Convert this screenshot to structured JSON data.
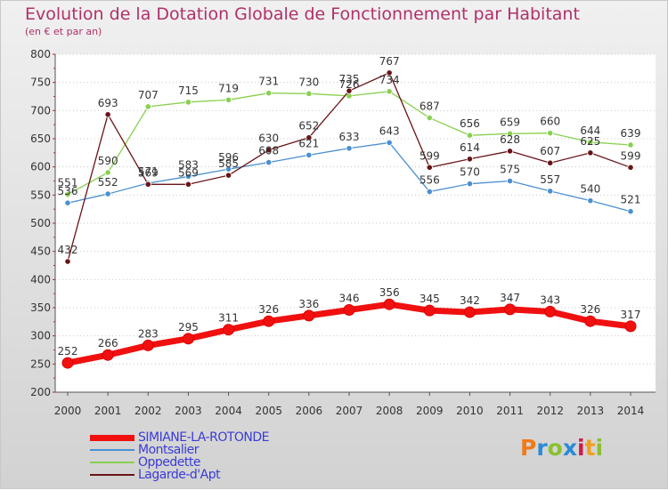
{
  "title": "Evolution de la Dotation Globale de Fonctionnement par Habitant",
  "subtitle": "(en € et par an)",
  "logo": {
    "text": "Proxiti",
    "colors": [
      "#f07a1a",
      "#2a8ad8",
      "#8ac030",
      "#2a8ad8",
      "#d01a4a",
      "#f0a020",
      "#8ac030"
    ]
  },
  "chart_data": {
    "type": "line",
    "x": [
      "2000",
      "2001",
      "2002",
      "2003",
      "2004",
      "2005",
      "2006",
      "2007",
      "2008",
      "2009",
      "2010",
      "2011",
      "2012",
      "2013",
      "2014"
    ],
    "ylim": [
      200,
      800
    ],
    "yticks": [
      200,
      250,
      300,
      350,
      400,
      450,
      500,
      550,
      600,
      650,
      700,
      750,
      800
    ],
    "grid": "horizontal dotted",
    "legend_position": "bottom-left",
    "series": [
      {
        "name": "SIMIANE-LA-ROTONDE",
        "color": "#f01010",
        "values": [
          252,
          266,
          283,
          295,
          311,
          326,
          336,
          346,
          356,
          345,
          342,
          347,
          343,
          326,
          317
        ]
      },
      {
        "name": "Montsalier",
        "color": "#4a90d0",
        "values": [
          536,
          552,
          571,
          583,
          596,
          608,
          621,
          633,
          643,
          556,
          570,
          575,
          557,
          540,
          521
        ]
      },
      {
        "name": "Oppedette",
        "color": "#88d050",
        "values": [
          551,
          590,
          707,
          715,
          719,
          731,
          730,
          726,
          734,
          687,
          656,
          659,
          660,
          644,
          639
        ]
      },
      {
        "name": "Lagarde-d'Apt",
        "color": "#6a1418",
        "values": [
          432,
          693,
          569,
          569,
          585,
          630,
          652,
          735,
          767,
          599,
          614,
          628,
          607,
          625,
          599
        ]
      }
    ],
    "value_labels": [
      [
        252,
        266,
        283,
        295,
        311,
        326,
        336,
        346,
        356,
        345,
        342,
        347,
        343,
        326,
        317
      ],
      [
        536,
        552,
        571,
        583,
        596,
        608,
        621,
        633,
        643,
        556,
        570,
        575,
        557,
        540,
        521
      ],
      [
        551,
        590,
        707,
        715,
        719,
        731,
        730,
        726,
        734,
        687,
        656,
        659,
        660,
        644,
        639
      ],
      [
        432,
        693,
        569,
        569,
        585,
        630,
        652,
        735,
        767,
        599,
        614,
        628,
        607,
        625,
        599
      ]
    ]
  }
}
